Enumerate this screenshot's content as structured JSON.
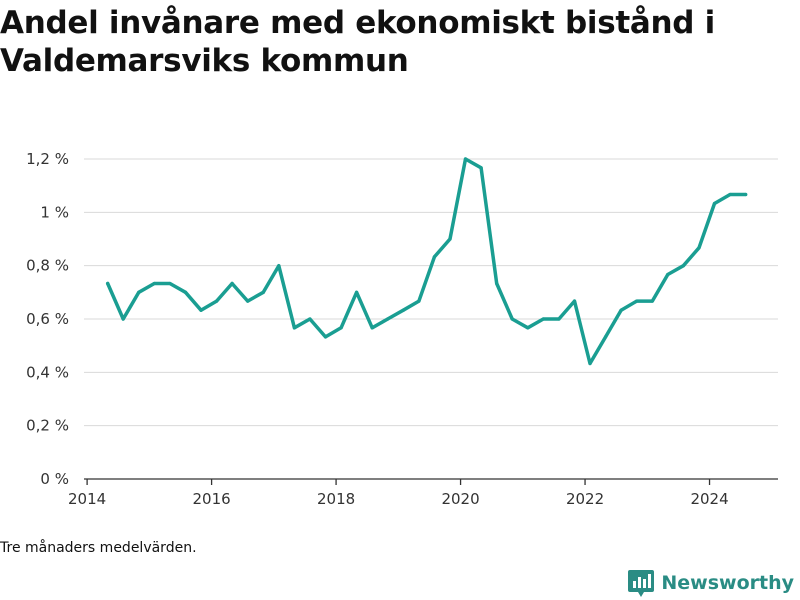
{
  "title": "Andel invånare med ekonomiskt bistånd i Valdemarsviks kommun",
  "footnote": "Tre månaders medelvärden.",
  "brand": {
    "name": "Newsworthy",
    "logo_icon": "bar-chart-pin-icon",
    "color": "#2a8c84"
  },
  "chart_data": {
    "type": "line",
    "title": "Andel invånare med ekonomiskt bistånd i Valdemarsviks kommun",
    "xlabel": "",
    "ylabel": "",
    "xlim": [
      2013.95,
      2025.1
    ],
    "ylim": [
      0,
      1.2
    ],
    "x_ticks": [
      2014,
      2016,
      2018,
      2020,
      2022,
      2024
    ],
    "x_tick_labels": [
      "2014",
      "2016",
      "2018",
      "2020",
      "2022",
      "2024"
    ],
    "y_ticks": [
      0,
      0.2,
      0.4,
      0.6,
      0.8,
      1.0,
      1.2
    ],
    "y_tick_labels": [
      "0 %",
      "0,2 %",
      "0,4 %",
      "0,6 %",
      "0,8 %",
      "1 %",
      "1,2 %"
    ],
    "grid": true,
    "line_color": "#1a9e92",
    "series": [
      {
        "x": [
          2014.33,
          2014.58,
          2014.83,
          2015.08,
          2015.33,
          2015.58,
          2015.83,
          2016.08,
          2016.33,
          2016.58,
          2016.83,
          2017.08,
          2017.33,
          2017.58,
          2017.83,
          2018.08,
          2018.33,
          2018.58,
          2018.83,
          2019.08,
          2019.33,
          2019.58,
          2019.83,
          2020.08,
          2020.33,
          2020.58,
          2020.83,
          2021.08,
          2021.33,
          2021.58,
          2021.83,
          2022.08,
          2022.33,
          2022.58,
          2022.83,
          2023.08,
          2023.33,
          2023.58,
          2023.83,
          2024.08,
          2024.33,
          2024.58
        ],
        "values": [
          0.733,
          0.6,
          0.7,
          0.733,
          0.733,
          0.7,
          0.633,
          0.667,
          0.733,
          0.667,
          0.7,
          0.8,
          0.567,
          0.6,
          0.533,
          0.567,
          0.7,
          0.567,
          0.6,
          0.633,
          0.667,
          0.833,
          0.9,
          1.2,
          1.167,
          0.733,
          0.6,
          0.567,
          0.6,
          0.6,
          0.667,
          0.433,
          0.533,
          0.633,
          0.667,
          0.667,
          0.767,
          0.8,
          0.867,
          1.033,
          1.067,
          1.067
        ]
      }
    ]
  }
}
